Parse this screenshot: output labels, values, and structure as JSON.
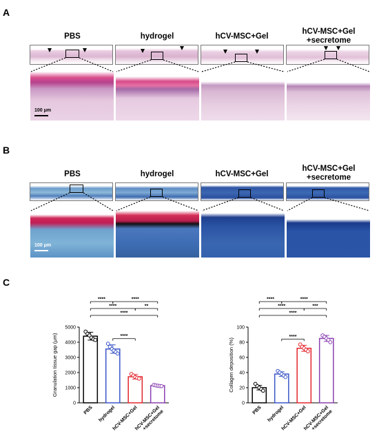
{
  "figure": {
    "panel_a": "A",
    "panel_b": "B",
    "panel_c": "C",
    "groups": [
      "PBS",
      "hydrogel",
      "hCV-MSC+Gel",
      "hCV-MSC+Gel\n+secretome"
    ],
    "scale_bar_a": "100 μm",
    "scale_bar_b": "100 μm",
    "colors": {
      "he_tissue": "#e8c6de",
      "he_dark": "#b77fb0",
      "he_red": "#d64d8e",
      "mt_blue": "#3c67b0",
      "mt_dark": "#1d3f8e",
      "mt_red": "#d0285a",
      "mt_light": "#7fb0d4"
    }
  },
  "chart_data": [
    {
      "type": "bar",
      "title": "",
      "categories": [
        "PBS",
        "hydrogel",
        "hCV-MSC+Gel",
        "hCV-MSC+Gel\n+secretome"
      ],
      "category_colors": [
        "#000000",
        "#3a55c7",
        "#e3242b",
        "#8a3fb1"
      ],
      "ylabel": "Granulation tissue gap (μm)",
      "ylim": [
        0,
        5000
      ],
      "yticks": [
        0,
        1000,
        2000,
        3000,
        4000,
        5000
      ],
      "values": [
        4400,
        3550,
        1720,
        1130
      ],
      "errors": [
        260,
        280,
        150,
        50
      ],
      "points": [
        [
          4700,
          4550,
          4450,
          4300,
          4200,
          4150
        ],
        [
          3900,
          3700,
          3550,
          3450,
          3350,
          3250
        ],
        [
          1900,
          1800,
          1700,
          1650,
          1600
        ],
        [
          1180,
          1150,
          1130,
          1110,
          1100
        ]
      ],
      "significance": [
        {
          "pair": [
            0,
            1
          ],
          "label": "****"
        },
        {
          "pair": [
            1,
            3
          ],
          "label": "****"
        },
        {
          "pair": [
            0,
            2
          ],
          "label": "****"
        },
        {
          "pair": [
            2,
            3
          ],
          "label": "**"
        },
        {
          "pair": [
            0,
            3
          ],
          "label": "****"
        },
        {
          "pair": [
            1,
            2
          ],
          "label": "****"
        }
      ]
    },
    {
      "type": "bar",
      "title": "",
      "categories": [
        "PBS",
        "hydrogel",
        "hCV-MSC+Gel",
        "hCV-MSC+Gel\n+secretome"
      ],
      "category_colors": [
        "#000000",
        "#3a55c7",
        "#e3242b",
        "#8a3fb1"
      ],
      "ylabel": "Collagen deposition (%)",
      "ylim": [
        0,
        100
      ],
      "yticks": [
        0,
        20,
        40,
        60,
        80,
        100
      ],
      "values": [
        20,
        38,
        72,
        85
      ],
      "errors": [
        3,
        3,
        4,
        4
      ],
      "points": [
        [
          25,
          22,
          20,
          18,
          16
        ],
        [
          42,
          40,
          38,
          36,
          34
        ],
        [
          77,
          74,
          72,
          70,
          68
        ],
        [
          89,
          87,
          85,
          83,
          80
        ]
      ],
      "significance": [
        {
          "pair": [
            0,
            1
          ],
          "label": "****"
        },
        {
          "pair": [
            1,
            3
          ],
          "label": "****"
        },
        {
          "pair": [
            0,
            2
          ],
          "label": "****"
        },
        {
          "pair": [
            2,
            3
          ],
          "label": "***"
        },
        {
          "pair": [
            0,
            3
          ],
          "label": "****"
        },
        {
          "pair": [
            1,
            2
          ],
          "label": "****"
        }
      ]
    }
  ]
}
